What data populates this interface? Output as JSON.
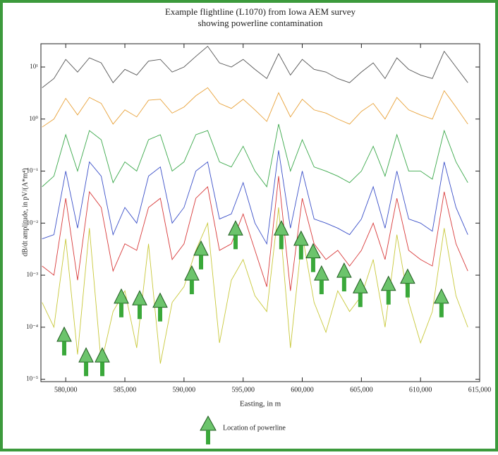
{
  "chart_data": {
    "type": "line",
    "title": "Example flightline (L1070) from Iowa AEM survey",
    "subtitle": "showing powerline contamination",
    "x_label": "Easting, in m",
    "y_label": "dB/dt amplitude, in pV/(A*m⁴)",
    "log_y": true,
    "xlim": [
      577900,
      615000
    ],
    "ylim": [
      9e-06,
      28
    ],
    "xticks": [
      {
        "value": 580000,
        "label": "580,000"
      },
      {
        "value": 585000,
        "label": "585,000"
      },
      {
        "value": 590000,
        "label": "590,000"
      },
      {
        "value": 595000,
        "label": "595,000"
      },
      {
        "value": 600000,
        "label": "600,000"
      },
      {
        "value": 605000,
        "label": "605,000"
      },
      {
        "value": 610000,
        "label": "610,000"
      },
      {
        "value": 615000,
        "label": "615,000"
      }
    ],
    "yticks": [
      {
        "value": 10,
        "label": "10¹"
      },
      {
        "value": 1,
        "label": "10⁰"
      },
      {
        "value": 0.1,
        "label": "10⁻¹"
      },
      {
        "value": 0.01,
        "label": "10⁻²"
      },
      {
        "value": 0.001,
        "label": "10⁻³"
      },
      {
        "value": 0.0001,
        "label": "10⁻⁴"
      },
      {
        "value": 1e-05,
        "label": "10⁻⁵"
      }
    ],
    "x": [
      578000,
      579000,
      580000,
      581000,
      582000,
      583000,
      584000,
      585000,
      586000,
      587000,
      588000,
      589000,
      590000,
      591000,
      592000,
      593000,
      594000,
      595000,
      596000,
      597000,
      598000,
      599000,
      600000,
      601000,
      602000,
      603000,
      604000,
      605000,
      606000,
      607000,
      608000,
      609000,
      610000,
      611000,
      612000,
      613000,
      614000
    ],
    "series": [
      {
        "color": "#555555",
        "values": [
          4,
          6,
          14,
          8,
          15,
          12,
          5,
          9,
          7,
          13,
          14,
          8,
          10,
          16,
          25,
          12,
          10,
          14,
          9,
          6,
          18,
          7,
          14,
          9,
          8,
          6,
          5,
          8,
          12,
          6,
          15,
          9,
          7,
          6,
          20,
          10,
          5
        ]
      },
      {
        "color": "#e8a23a",
        "values": [
          0.7,
          1,
          2.5,
          1.2,
          2.6,
          2,
          0.8,
          1.5,
          1.1,
          2.3,
          2.4,
          1.3,
          1.7,
          2.8,
          4,
          2,
          1.6,
          2.4,
          1.5,
          0.9,
          3.2,
          1.1,
          2.4,
          1.5,
          1.3,
          1,
          0.8,
          1.4,
          2,
          1,
          2.6,
          1.5,
          1.2,
          1,
          3.5,
          1.7,
          0.8
        ]
      },
      {
        "color": "#3aa84a",
        "values": [
          0.05,
          0.08,
          0.5,
          0.1,
          0.6,
          0.4,
          0.06,
          0.15,
          0.1,
          0.4,
          0.5,
          0.1,
          0.15,
          0.5,
          0.6,
          0.15,
          0.12,
          0.3,
          0.1,
          0.05,
          0.8,
          0.1,
          0.4,
          0.12,
          0.1,
          0.08,
          0.06,
          0.1,
          0.3,
          0.08,
          0.5,
          0.1,
          0.1,
          0.07,
          0.6,
          0.15,
          0.06
        ]
      },
      {
        "color": "#3a4fc8",
        "values": [
          0.005,
          0.006,
          0.1,
          0.008,
          0.15,
          0.08,
          0.006,
          0.02,
          0.01,
          0.08,
          0.12,
          0.01,
          0.02,
          0.1,
          0.15,
          0.012,
          0.015,
          0.06,
          0.01,
          0.004,
          0.25,
          0.008,
          0.1,
          0.012,
          0.01,
          0.008,
          0.006,
          0.012,
          0.05,
          0.008,
          0.1,
          0.012,
          0.01,
          0.007,
          0.15,
          0.02,
          0.006
        ]
      },
      {
        "color": "#d83a3a",
        "values": [
          0.0015,
          0.001,
          0.03,
          0.0008,
          0.04,
          0.02,
          0.0012,
          0.004,
          0.003,
          0.02,
          0.03,
          0.002,
          0.004,
          0.03,
          0.05,
          0.003,
          0.004,
          0.015,
          0.003,
          0.0006,
          0.08,
          0.0005,
          0.03,
          0.004,
          0.002,
          0.003,
          0.0015,
          0.003,
          0.01,
          0.002,
          0.03,
          0.003,
          0.002,
          0.0015,
          0.04,
          0.004,
          0.0012
        ]
      },
      {
        "color": "#c8c83a",
        "values": [
          0.0003,
          0.0001,
          0.005,
          3e-05,
          0.008,
          2e-05,
          0.0002,
          0.0005,
          4e-05,
          0.004,
          2e-05,
          0.0003,
          0.0006,
          0.003,
          0.01,
          5e-05,
          0.0008,
          0.002,
          0.0004,
          0.0002,
          0.02,
          4e-05,
          0.006,
          0.0003,
          8e-05,
          0.0005,
          0.0002,
          0.0004,
          0.002,
          0.0001,
          0.006,
          0.0003,
          5e-05,
          0.0002,
          0.008,
          0.0004,
          0.0001
        ]
      }
    ],
    "powerlines": {
      "label": "Location of powerline",
      "color": "#6cc46c",
      "x": [
        579870,
        581720,
        583090,
        584700,
        586250,
        587980,
        590660,
        591440,
        594360,
        598230,
        599900,
        600920,
        601630,
        603540,
        604910,
        607290,
        608910,
        611770
      ],
      "y": [
        0.0001,
        4e-05,
        4e-05,
        0.00054,
        0.0005,
        0.00045,
        0.0015,
        0.0045,
        0.011,
        0.011,
        0.007,
        0.004,
        0.0015,
        0.0017,
        0.00085,
        0.00095,
        0.0013,
        0.00054
      ]
    }
  }
}
